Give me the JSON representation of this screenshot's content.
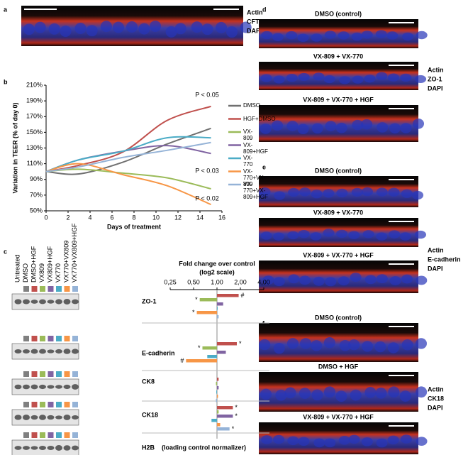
{
  "figure": {
    "a": {
      "label": "a",
      "stains": [
        "Actin",
        "CFTR",
        "DAPI"
      ]
    },
    "b": {
      "label": "b"
    },
    "c": {
      "label": "c",
      "lanes": [
        {
          "label": "Untreated",
          "color": null
        },
        {
          "label": "DMSO",
          "color": "#808080"
        },
        {
          "label": "DMSO+HGF",
          "color": "#c0504d"
        },
        {
          "label": "VX809",
          "color": "#9bbb59"
        },
        {
          "label": "VX809+HGF",
          "color": "#8064a2"
        },
        {
          "label": "VX770",
          "color": "#4bacc6"
        },
        {
          "label": "VX770+VX809",
          "color": "#f79646"
        },
        {
          "label": "VX770+VX809+HGF",
          "color": "#95b3d7"
        }
      ],
      "normalizer": "H2B",
      "normalizer_note": "(loading control normalizer)"
    },
    "d": {
      "label": "d",
      "images": [
        "DMSO (control)",
        "VX-809 + VX-770",
        "VX-809 + VX-770 + HGF"
      ],
      "stains": [
        "Actin",
        "ZO-1",
        "DAPI"
      ]
    },
    "e": {
      "label": "e",
      "images": [
        "DMSO (control)",
        "VX-809 + VX-770",
        "VX-809 + VX-770 + HGF"
      ],
      "stains": [
        "Actin",
        "E-cadherin",
        "DAPI"
      ]
    },
    "f": {
      "label": "f",
      "images": [
        "DMSO (control)",
        "DMSO + HGF",
        "VX-809 + VX-770 + HGF"
      ],
      "stains": [
        "Actin",
        "CK18",
        "DAPI"
      ]
    }
  },
  "chart_data": [
    {
      "type": "line",
      "xlabel": "Days of treatment",
      "ylabel": "Variation in TEER (% of day 0)",
      "x": [
        0,
        3,
        7,
        11,
        15
      ],
      "xlim": [
        0,
        16
      ],
      "xticks": [
        0,
        2,
        4,
        6,
        8,
        10,
        12,
        14,
        16
      ],
      "ylim": [
        50,
        210
      ],
      "yticks": [
        {
          "value": 50,
          "label": "50%"
        },
        {
          "value": 70,
          "label": "70%"
        },
        {
          "value": 90,
          "label": "90%"
        },
        {
          "value": 110,
          "label": "110%"
        },
        {
          "value": 130,
          "label": "130%"
        },
        {
          "value": 150,
          "label": "150%"
        },
        {
          "value": 170,
          "label": "170%"
        },
        {
          "value": 190,
          "label": "190%"
        },
        {
          "value": 210,
          "label": "210%"
        }
      ],
      "series": [
        {
          "name": "DMSO",
          "color": "#707070",
          "values": [
            100,
            97,
            112,
            135,
            155
          ]
        },
        {
          "name": "HGF+DMSO",
          "color": "#c0504d",
          "values": [
            100,
            108,
            125,
            165,
            183
          ]
        },
        {
          "name": "VX-809",
          "color": "#9bbb59",
          "values": [
            100,
            103,
            98,
            92,
            78
          ]
        },
        {
          "name": "VX-809+HGF",
          "color": "#8064a2",
          "values": [
            100,
            115,
            126,
            133,
            123
          ]
        },
        {
          "name": "VX-770",
          "color": "#4bacc6",
          "values": [
            100,
            115,
            126,
            143,
            143
          ]
        },
        {
          "name": "VX-770+VX-809",
          "color": "#f79646",
          "values": [
            100,
            110,
            96,
            82,
            58
          ]
        },
        {
          "name": "VX-770+VX-809+HGF",
          "color": "#95b3d7",
          "values": [
            100,
            106,
            118,
            127,
            137
          ]
        }
      ],
      "annotations": [
        "P < 0.05",
        "P < 0.03",
        "P < 0.02"
      ]
    },
    {
      "type": "hbar",
      "title": "Fold change over control",
      "subtitle": "(log2 scale)",
      "log": true,
      "categories": [
        "ZO-1",
        "E-cadherin",
        "CK8",
        "CK18"
      ],
      "xlim": [
        0.25,
        4
      ],
      "xticks": [
        {
          "value": 0.25,
          "label": "0,25"
        },
        {
          "value": 0.5,
          "label": "0,50"
        },
        {
          "value": 1,
          "label": "1,00"
        },
        {
          "value": 2,
          "label": "2,00"
        },
        {
          "value": 4,
          "label": "4,00"
        }
      ],
      "series": [
        {
          "color": "#c0504d",
          "values": [
            1.9,
            1.8,
            1.05,
            1.6
          ],
          "marks": [
            "#",
            "*",
            null,
            "*"
          ]
        },
        {
          "color": "#9bbb59",
          "values": [
            0.6,
            0.65,
            0.97,
            1.05
          ],
          "marks": [
            "*",
            "*",
            null,
            null
          ]
        },
        {
          "color": "#8064a2",
          "values": [
            1.2,
            1.3,
            1.05,
            1.6
          ],
          "marks": [
            null,
            null,
            null,
            "*"
          ]
        },
        {
          "color": "#4bacc6",
          "values": [
            1.02,
            0.75,
            0.98,
            0.85
          ],
          "marks": [
            null,
            null,
            null,
            null
          ]
        },
        {
          "color": "#f79646",
          "values": [
            0.55,
            0.4,
            1.03,
            1.1
          ],
          "marks": [
            "*",
            "#",
            null,
            null
          ]
        },
        {
          "color": "#95b3d7",
          "values": [
            1.05,
            1.0,
            0.97,
            1.45
          ],
          "marks": [
            null,
            null,
            null,
            "*"
          ]
        }
      ]
    }
  ]
}
